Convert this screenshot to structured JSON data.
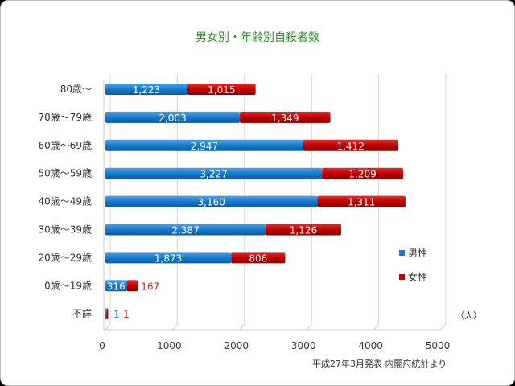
{
  "chart_data": {
    "type": "bar",
    "stacked": true,
    "orientation": "horizontal",
    "title": "男女別・年齢別自殺者数",
    "categories": [
      "80歳～",
      "70歳～79歳",
      "60歳～69歳",
      "50歳～59歳",
      "40歳～49歳",
      "30歳～39歳",
      "20歳～29歳",
      "0歳～19歳",
      "不詳"
    ],
    "series": [
      {
        "name": "男性",
        "color": "#1a7acc",
        "values": [
          1223,
          2003,
          2947,
          3227,
          3160,
          2387,
          1873,
          316,
          1
        ]
      },
      {
        "name": "女性",
        "color": "#c00000",
        "values": [
          1015,
          1349,
          1412,
          1209,
          1311,
          1126,
          806,
          167,
          1
        ]
      }
    ],
    "data_labels": {
      "男性": [
        "1,223",
        "2,003",
        "2,947",
        "3,227",
        "3,160",
        "2,387",
        "1,873",
        "316",
        "1"
      ],
      "女性": [
        "1,015",
        "1,349",
        "1,412",
        "1,209",
        "1,311",
        "1,126",
        "806",
        "167",
        "1"
      ]
    },
    "xlim": [
      0,
      5000
    ],
    "xticks": [
      "0",
      "1000",
      "2000",
      "3000",
      "4000",
      "5000"
    ],
    "unit": "（人）",
    "legend_position": "right",
    "grid": true,
    "source": "平成27年3月発表 内閣府統計より"
  }
}
